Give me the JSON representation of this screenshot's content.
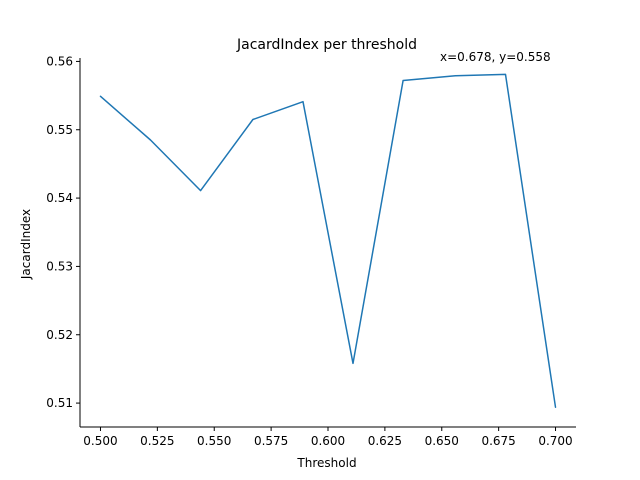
{
  "chart_data": {
    "type": "line",
    "title": "JacardIndex per threshold",
    "xlabel": "Threshold",
    "ylabel": "JacardIndex",
    "annotation": "x=0.678, y=0.558",
    "x": [
      0.5,
      0.522,
      0.544,
      0.567,
      0.589,
      0.611,
      0.633,
      0.656,
      0.678,
      0.7
    ],
    "series": [
      {
        "values": [
          0.5549,
          0.5485,
          0.5411,
          0.5515,
          0.5541,
          0.5158,
          0.5572,
          0.5579,
          0.5581,
          0.5094
        ],
        "color": "#1f77b4"
      }
    ],
    "xlim": [
      0.491,
      0.709
    ],
    "ylim": [
      0.5065,
      0.5605
    ],
    "x_ticks": [
      0.5,
      0.525,
      0.55,
      0.575,
      0.6,
      0.625,
      0.65,
      0.675,
      0.7
    ],
    "x_tick_labels": [
      "0.500",
      "0.525",
      "0.550",
      "0.575",
      "0.600",
      "0.625",
      "0.650",
      "0.675",
      "0.700"
    ],
    "y_ticks": [
      0.51,
      0.52,
      0.53,
      0.54,
      0.55,
      0.56
    ],
    "y_tick_labels": [
      "0.51",
      "0.52",
      "0.53",
      "0.54",
      "0.55",
      "0.56"
    ],
    "grid": false,
    "spines": [
      "left",
      "bottom"
    ]
  }
}
